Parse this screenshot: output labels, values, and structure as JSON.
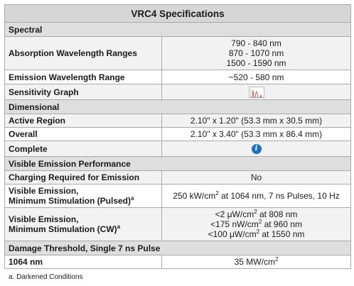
{
  "title": "VRC4 Specifications",
  "sections": {
    "spectral": "Spectral",
    "dimensional": "Dimensional",
    "visible": "Visible Emission Performance",
    "damage": "Damage Threshold, Single 7 ns Pulse"
  },
  "rows": {
    "absorption": {
      "label": "Absorption Wavelength Ranges",
      "values": [
        "790 - 840 nm",
        "870 - 1070 nm",
        "1500 - 1590 nm"
      ]
    },
    "emission_range": {
      "label": "Emission Wavelength Range",
      "value": "~520 - 580 nm"
    },
    "sensitivity": {
      "label": "Sensitivity Graph",
      "icon": "graph-thumbnail-icon"
    },
    "active_region": {
      "label": "Active Region",
      "value": "2.10\" x 1.20\" (53.3 mm x 30.5 mm)"
    },
    "overall": {
      "label": "Overall",
      "value": "2.10\" x 3.40\" (53.3 mm x 86.4 mm)"
    },
    "complete": {
      "label": "Complete",
      "icon": "info-icon",
      "icon_glyph": "i"
    },
    "charging": {
      "label": "Charging Required for Emission",
      "value": "No"
    },
    "pulsed": {
      "label_line1": "Visible Emission,",
      "label_line2": "Minimum Stimulation (Pulsed)",
      "label_sup": "a",
      "value_pre": "250 kW/cm",
      "value_sup": "2",
      "value_post": " at 1064 nm, 7 ns Pulses, 10 Hz"
    },
    "cw": {
      "label_line1": "Visible Emission,",
      "label_line2": "Minimum Stimulation (CW)",
      "label_sup": "a",
      "lines": [
        {
          "pre": "<2 μW/cm",
          "sup": "2",
          "post": " at 808 nm"
        },
        {
          "pre": "<175 nW/cm",
          "sup": "2",
          "post": " at 960 nm"
        },
        {
          "pre": "<100 μW/cm",
          "sup": "2",
          "post": " at 1550 nm"
        }
      ]
    },
    "nm1064": {
      "label": "1064 nm",
      "value_pre": "35 MW/cm",
      "value_sup": "2"
    }
  },
  "footnote": "a. Darkened Conditions",
  "colors": {
    "header_bg": "#d6d6d6",
    "section_bg": "#dedede",
    "row_bg": "#f2f2f2",
    "info_blue": "#1f6fc5"
  }
}
